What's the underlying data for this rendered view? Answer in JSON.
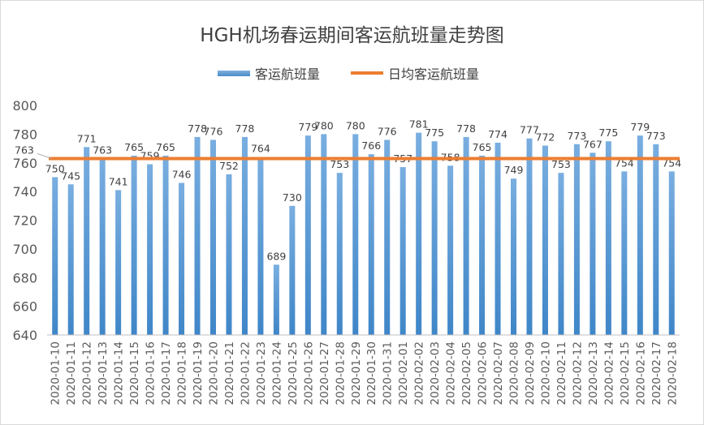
{
  "chart_data": {
    "type": "bar",
    "title": "HGH机场春运期间客运航班量走势图",
    "categories": [
      "2020-01-10",
      "2020-01-11",
      "2020-01-12",
      "2020-01-13",
      "2020-01-14",
      "2020-01-15",
      "2020-01-16",
      "2020-01-17",
      "2020-01-18",
      "2020-01-19",
      "2020-01-20",
      "2020-01-21",
      "2020-01-22",
      "2020-01-23",
      "2020-01-24",
      "2020-01-25",
      "2020-01-26",
      "2020-01-27",
      "2020-01-28",
      "2020-01-29",
      "2020-01-30",
      "2020-01-31",
      "2020-02-01",
      "2020-02-02",
      "2020-02-03",
      "2020-02-04",
      "2020-02-05",
      "2020-02-06",
      "2020-02-07",
      "2020-02-08",
      "2020-02-09",
      "2020-02-10",
      "2020-02-11",
      "2020-02-12",
      "2020-02-13",
      "2020-02-14",
      "2020-02-15",
      "2020-02-16",
      "2020-02-17",
      "2020-02-18"
    ],
    "series": [
      {
        "name": "客运航班量",
        "type": "bar",
        "color": "#5B9BD5",
        "values": [
          750,
          745,
          771,
          763,
          741,
          765,
          759,
          765,
          746,
          778,
          776,
          752,
          778,
          764,
          689,
          730,
          779,
          780,
          753,
          780,
          766,
          776,
          757,
          781,
          775,
          758,
          778,
          765,
          774,
          749,
          777,
          772,
          753,
          773,
          767,
          775,
          754,
          779,
          773,
          754
        ]
      },
      {
        "name": "日均客运航班量",
        "type": "line",
        "color": "#ED7D31",
        "value": 763,
        "value_label": "763"
      }
    ],
    "ylim": [
      640,
      800
    ],
    "yticks": [
      640,
      660,
      680,
      700,
      720,
      740,
      760,
      780,
      800
    ],
    "legend": "top",
    "grid": false
  }
}
